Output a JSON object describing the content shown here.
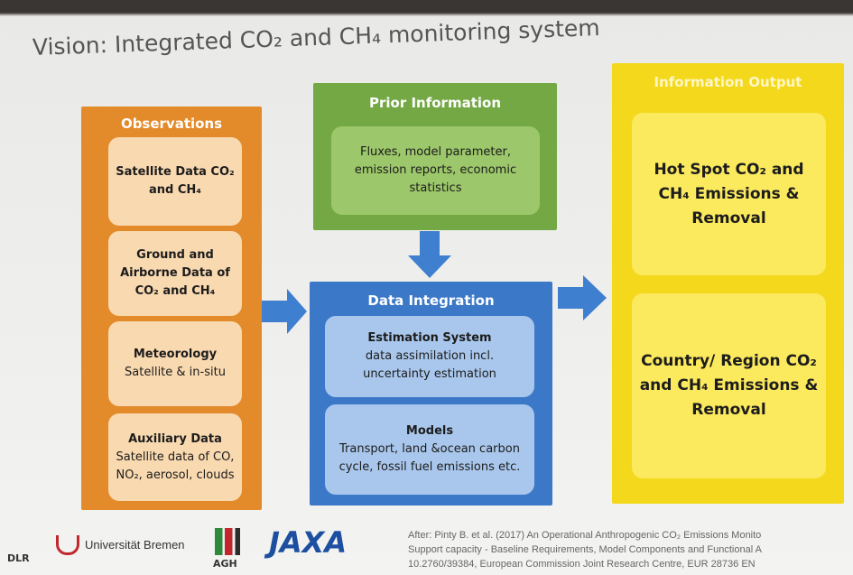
{
  "title": "Vision: Integrated CO₂ and CH₄ monitoring system",
  "observations": {
    "header": "Observations",
    "items": [
      {
        "title": "Satellite Data CO₂ and CH₄"
      },
      {
        "title": "Ground and Airborne Data of CO₂ and CH₄"
      },
      {
        "title": "Meteorology",
        "text": "Satellite & in-situ"
      },
      {
        "title": "Auxiliary Data",
        "text": "Satellite data of CO, NO₂, aerosol, clouds"
      }
    ]
  },
  "prior_information": {
    "header": "Prior Information",
    "text": "Fluxes, model parameter, emission reports, economic statistics"
  },
  "data_integration": {
    "header": "Data Integration",
    "items": [
      {
        "title": "Estimation System",
        "text": "data assimilation incl. uncertainty estimation"
      },
      {
        "title": "Models",
        "text": "Transport, land &ocean carbon cycle, fossil fuel emissions etc."
      }
    ]
  },
  "information_output": {
    "header": "Information Output",
    "items": [
      {
        "title": "Hot Spot CO₂ and CH₄ Emissions & Removal"
      },
      {
        "title": "Country/ Region CO₂ and CH₄ Emissions & Removal"
      }
    ]
  },
  "footer": {
    "logos": [
      "DLR",
      "Universität Bremen",
      "AGH",
      "JAXA"
    ],
    "citation": [
      "After: Pinty B. et al. (2017) An Operational Anthropogenic CO₂ Emissions Monito",
      "Support capacity - Baseline Requirements, Model Components and Functional A",
      "10.2760/39384, European Commission Joint Research Centre, EUR 28736 EN"
    ]
  }
}
